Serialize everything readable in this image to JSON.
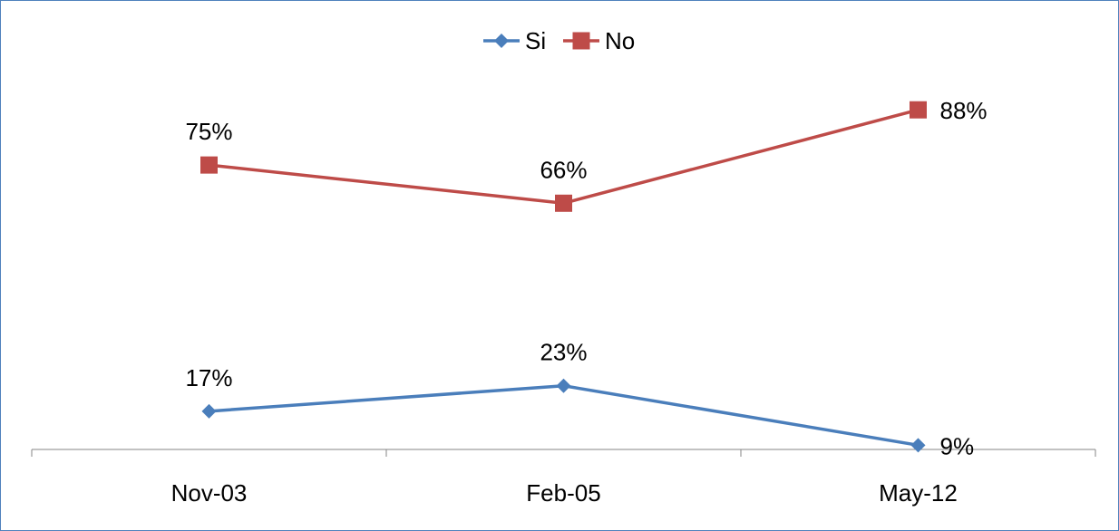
{
  "chart_data": {
    "type": "line",
    "categories": [
      "Nov-03",
      "Feb-05",
      "May-12"
    ],
    "series": [
      {
        "name": "Si",
        "values": [
          17,
          23,
          9
        ],
        "labels": [
          "17%",
          "23%",
          "9%"
        ],
        "color": "#4a7ebb",
        "marker": "diamond"
      },
      {
        "name": "No",
        "values": [
          75,
          66,
          88
        ],
        "labels": [
          "75%",
          "66%",
          "88%"
        ],
        "color": "#be4b48",
        "marker": "square"
      }
    ],
    "title": "",
    "xlabel": "",
    "ylabel": "",
    "ylim": [
      8,
      100
    ],
    "grid": false,
    "legend_position": "top"
  }
}
